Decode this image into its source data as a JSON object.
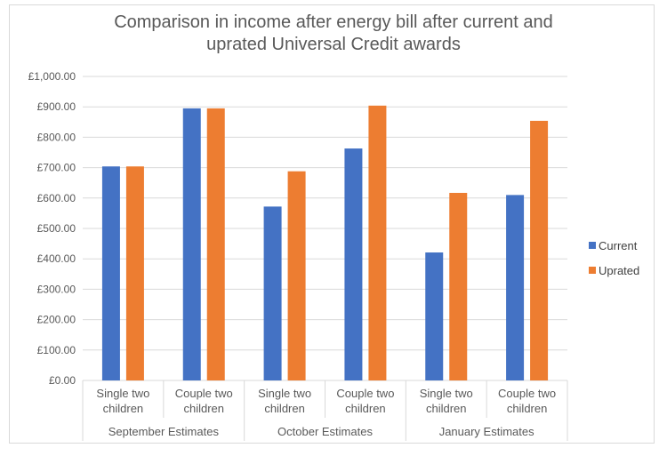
{
  "colors": {
    "current": "#4472c4",
    "uprated": "#ed7d31",
    "grid": "#d9d9d9",
    "text": "#595959"
  },
  "chart_data": {
    "type": "bar",
    "title": [
      "Comparison in income after energy bill after current and",
      "uprated Universal Credit awards"
    ],
    "groups": [
      {
        "label": "September Estimates",
        "categories": [
          [
            "Single two",
            "children"
          ],
          [
            "Couple two",
            "children"
          ]
        ]
      },
      {
        "label": "October Estimates",
        "categories": [
          [
            "Single two",
            "children"
          ],
          [
            "Couple two",
            "children"
          ]
        ]
      },
      {
        "label": "January Estimates",
        "categories": [
          [
            "Single two",
            "children"
          ],
          [
            "Couple two",
            "children"
          ]
        ]
      }
    ],
    "series": [
      {
        "name": "Current",
        "values": [
          704,
          895,
          572,
          763,
          421,
          610
        ]
      },
      {
        "name": "Uprated",
        "values": [
          704,
          895,
          688,
          904,
          617,
          854
        ]
      }
    ],
    "ylim": [
      0,
      1000
    ],
    "yticks": [
      0,
      100,
      200,
      300,
      400,
      500,
      600,
      700,
      800,
      900,
      1000
    ],
    "ytick_labels": [
      "£0.00",
      "£100.00",
      "£200.00",
      "£300.00",
      "£400.00",
      "£500.00",
      "£600.00",
      "£700.00",
      "£800.00",
      "£900.00",
      "£1,000.00"
    ],
    "grid": true,
    "legend_position": "right"
  }
}
